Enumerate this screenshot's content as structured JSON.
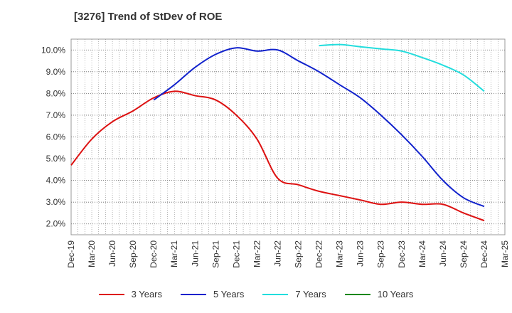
{
  "chart_data": {
    "type": "line",
    "title": "[3276]  Trend of StDev of ROE",
    "x_ticks": [
      "Dec-19",
      "Mar-20",
      "Jun-20",
      "Sep-20",
      "Dec-20",
      "Mar-21",
      "Jun-21",
      "Sep-21",
      "Dec-21",
      "Mar-22",
      "Jun-22",
      "Sep-22",
      "Dec-22",
      "Mar-23",
      "Jun-23",
      "Sep-23",
      "Dec-23",
      "Mar-24",
      "Jun-24",
      "Sep-24",
      "Dec-24",
      "Mar-25"
    ],
    "y_ticks": [
      "2.0%",
      "3.0%",
      "4.0%",
      "5.0%",
      "6.0%",
      "7.0%",
      "8.0%",
      "9.0%",
      "10.0%"
    ],
    "ylim": [
      1.5,
      10.5
    ],
    "grid": true,
    "legend_position": "bottom",
    "series": [
      {
        "name": "3 Years",
        "color": "#dd1111",
        "x": [
          "2019-12",
          "2020-03",
          "2020-06",
          "2020-09",
          "2020-12",
          "2021-03",
          "2021-06",
          "2021-09",
          "2021-12",
          "2022-03",
          "2022-06",
          "2022-09",
          "2022-12",
          "2023-03",
          "2023-06",
          "2023-09",
          "2023-12",
          "2024-03",
          "2024-06",
          "2024-09",
          "2024-12"
        ],
        "y": [
          4.7,
          5.9,
          6.7,
          7.2,
          7.8,
          8.1,
          7.9,
          7.7,
          7.0,
          5.9,
          4.1,
          3.8,
          3.5,
          3.3,
          3.1,
          2.9,
          3.0,
          2.9,
          2.9,
          2.5,
          2.15
        ]
      },
      {
        "name": "5 Years",
        "color": "#1122cc",
        "x": [
          "2020-12",
          "2021-03",
          "2021-06",
          "2021-09",
          "2021-12",
          "2022-03",
          "2022-06",
          "2022-09",
          "2022-12",
          "2023-03",
          "2023-06",
          "2023-09",
          "2023-12",
          "2024-03",
          "2024-06",
          "2024-09",
          "2024-12"
        ],
        "y": [
          7.7,
          8.4,
          9.2,
          9.8,
          10.1,
          9.95,
          10.0,
          9.5,
          9.0,
          8.4,
          7.8,
          7.0,
          6.1,
          5.1,
          4.0,
          3.2,
          2.8
        ]
      },
      {
        "name": "7 Years",
        "color": "#22dddd",
        "x": [
          "2022-12",
          "2023-03",
          "2023-06",
          "2023-09",
          "2023-12",
          "2024-03",
          "2024-06",
          "2024-09",
          "2024-12"
        ],
        "y": [
          10.2,
          10.25,
          10.15,
          10.05,
          9.95,
          9.65,
          9.3,
          8.85,
          8.1
        ]
      },
      {
        "name": "10 Years",
        "color": "#118811",
        "x": [],
        "y": []
      }
    ]
  }
}
